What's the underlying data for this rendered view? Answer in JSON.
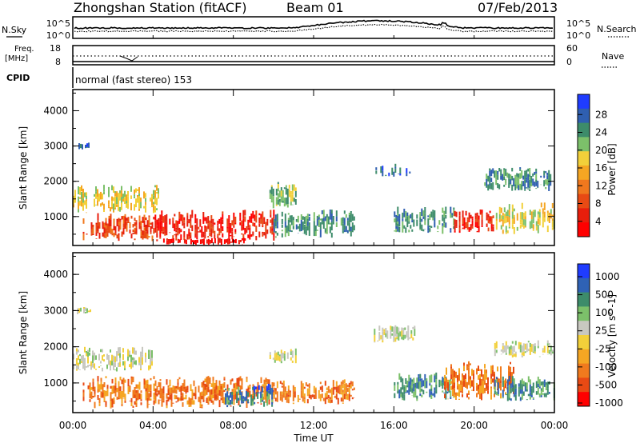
{
  "header": {
    "title": "Zhongshan Station (fitACF)",
    "beam": "Beam 01",
    "date": "07/Feb/2013"
  },
  "top_panels": {
    "nsky_label": "N.Sky",
    "nsky_ticks": [
      "10^5",
      "10^0"
    ],
    "nsearch_label": "N.Search",
    "nsearch_ticks": [
      "10^5",
      "10^0"
    ],
    "freq_label_line1": "Freq.",
    "freq_label_line2": "[MHz]",
    "freq_ticks": [
      "18",
      "8"
    ],
    "nave_label": "Nave",
    "nave_ticks": [
      "60",
      "0"
    ],
    "cpid_label": "CPID",
    "cpid_text": "normal (fast stereo) 153"
  },
  "colors": {
    "power": [
      "#1f3cff",
      "#2f5fb0",
      "#3d8c6a",
      "#7cc06a",
      "#f2d03a",
      "#f5a623",
      "#f0781e",
      "#e84a14",
      "#e81e0c",
      "#ff0000"
    ],
    "velocity": [
      "#1f3cff",
      "#2f62b5",
      "#3d8c6a",
      "#7cc06a",
      "#c8c8c0",
      "#f2d03a",
      "#f5a623",
      "#f07a1e",
      "#e84a14",
      "#ff0000"
    ]
  },
  "chart_data": [
    {
      "type": "heatmap",
      "name": "power-panel",
      "ylabel": "Slant Range [km]",
      "xlabel": "Time UT",
      "y_ticks": [
        "1000",
        "2000",
        "3000",
        "4000"
      ],
      "x_ticks": [
        "00:00",
        "04:00",
        "08:00",
        "12:00",
        "16:00",
        "20:00",
        "00:00"
      ],
      "colorbar_label": "Power [dB]",
      "colorbar_ticks": [
        "4",
        "8",
        "12",
        "16",
        "20",
        "24",
        "28"
      ],
      "ylim": [
        180,
        4600
      ],
      "xlim": [
        0,
        24
      ],
      "scattered_echoes": [
        {
          "t0": 0.2,
          "t1": 0.9,
          "r0": 2900,
          "r1": 3100,
          "level": 1
        },
        {
          "t0": 0.0,
          "t1": 4.3,
          "r0": 1100,
          "r1": 1900,
          "level": 4
        },
        {
          "t0": 0.5,
          "t1": 4.0,
          "r0": 300,
          "r1": 1100,
          "level": 7
        },
        {
          "t0": 4.0,
          "t1": 10.0,
          "r0": 300,
          "r1": 1200,
          "level": 8
        },
        {
          "t0": 4.5,
          "t1": 8.5,
          "r0": 200,
          "r1": 400,
          "level": 9
        },
        {
          "t0": 9.8,
          "t1": 11.2,
          "r0": 1200,
          "r1": 2000,
          "level": 3
        },
        {
          "t0": 10.0,
          "t1": 14.0,
          "r0": 400,
          "r1": 1200,
          "level": 2
        },
        {
          "t0": 15.0,
          "t1": 16.8,
          "r0": 2100,
          "r1": 2500,
          "level": 1
        },
        {
          "t0": 16.0,
          "t1": 19.0,
          "r0": 500,
          "r1": 1300,
          "level": 2
        },
        {
          "t0": 19.0,
          "t1": 21.0,
          "r0": 500,
          "r1": 1200,
          "level": 8
        },
        {
          "t0": 20.5,
          "t1": 24.0,
          "r0": 1700,
          "r1": 2400,
          "level": 2
        },
        {
          "t0": 21.0,
          "t1": 24.0,
          "r0": 500,
          "r1": 1400,
          "level": 4
        }
      ]
    },
    {
      "type": "heatmap",
      "name": "velocity-panel",
      "ylabel": "Slant Range [km]",
      "xlabel": "Time UT",
      "y_ticks": [
        "1000",
        "2000",
        "3000",
        "4000"
      ],
      "x_ticks": [
        "00:00",
        "04:00",
        "08:00",
        "12:00",
        "16:00",
        "20:00",
        "00:00"
      ],
      "colorbar_label": "Velocity [m s^-1]",
      "colorbar_ticks": [
        "1000",
        "500",
        "100",
        "25",
        "-25",
        "-100",
        "-500",
        "-1000"
      ],
      "ylim": [
        180,
        4600
      ],
      "xlim": [
        0,
        24
      ],
      "scattered_echoes": [
        {
          "t0": 0.2,
          "t1": 0.9,
          "r0": 2900,
          "r1": 3100,
          "level": 4
        },
        {
          "t0": 0.0,
          "t1": 4.0,
          "r0": 1300,
          "r1": 2000,
          "level": 4
        },
        {
          "t0": 0.5,
          "t1": 10.0,
          "r0": 300,
          "r1": 1200,
          "level": 7
        },
        {
          "t0": 7.5,
          "t1": 10.0,
          "r0": 300,
          "r1": 900,
          "level": 2
        },
        {
          "t0": 9.0,
          "t1": 10.0,
          "r0": 700,
          "r1": 1000,
          "level": 0
        },
        {
          "t0": 9.8,
          "t1": 11.2,
          "r0": 1500,
          "r1": 2000,
          "level": 4
        },
        {
          "t0": 10.0,
          "t1": 14.0,
          "r0": 400,
          "r1": 1100,
          "level": 7
        },
        {
          "t0": 15.0,
          "t1": 17.0,
          "r0": 2100,
          "r1": 2600,
          "level": 4
        },
        {
          "t0": 16.0,
          "t1": 19.0,
          "r0": 500,
          "r1": 1300,
          "level": 2
        },
        {
          "t0": 18.5,
          "t1": 22.0,
          "r0": 500,
          "r1": 1600,
          "level": 7
        },
        {
          "t0": 21.0,
          "t1": 24.0,
          "r0": 1700,
          "r1": 2200,
          "level": 4
        },
        {
          "t0": 21.0,
          "t1": 24.0,
          "r0": 500,
          "r1": 1200,
          "level": 2
        }
      ]
    }
  ]
}
